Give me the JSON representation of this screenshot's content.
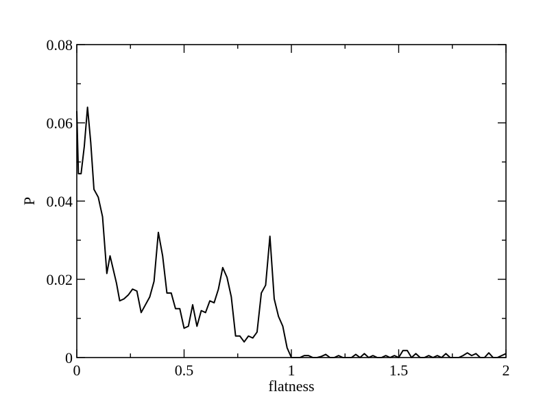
{
  "chart_data": {
    "type": "line",
    "xlabel": "flatness",
    "ylabel": "P",
    "xlim": [
      0,
      2
    ],
    "ylim": [
      0,
      0.08
    ],
    "grid": false,
    "x_ticks": [
      0,
      0.5,
      1,
      1.5,
      2
    ],
    "x_tick_labels": [
      "0",
      "0.5",
      "1",
      "1.5",
      "2"
    ],
    "x_minor_ticks": [
      0.25,
      0.75,
      1.25,
      1.75
    ],
    "y_ticks": [
      0,
      0.02,
      0.04,
      0.06,
      0.08
    ],
    "y_tick_labels": [
      "0",
      "0.02",
      "0.04",
      "0.06",
      "0.08"
    ],
    "y_minor_ticks": [
      0.01,
      0.03,
      0.05,
      0.07
    ],
    "series": [
      {
        "x": [
          0.0,
          0.0075,
          0.02,
          0.035,
          0.05,
          0.065,
          0.08,
          0.1,
          0.12,
          0.14,
          0.155,
          0.17,
          0.185,
          0.2,
          0.22,
          0.24,
          0.26,
          0.28,
          0.3,
          0.32,
          0.34,
          0.36,
          0.38,
          0.4,
          0.42,
          0.44,
          0.46,
          0.48,
          0.5,
          0.52,
          0.54,
          0.56,
          0.58,
          0.6,
          0.62,
          0.64,
          0.66,
          0.68,
          0.7,
          0.72,
          0.74,
          0.76,
          0.78,
          0.8,
          0.82,
          0.84,
          0.86,
          0.88,
          0.9,
          0.92,
          0.94,
          0.96,
          0.98,
          1.0,
          1.02,
          1.04,
          1.06,
          1.08,
          1.1,
          1.12,
          1.14,
          1.16,
          1.18,
          1.2,
          1.22,
          1.24,
          1.26,
          1.28,
          1.3,
          1.32,
          1.34,
          1.36,
          1.38,
          1.4,
          1.42,
          1.44,
          1.46,
          1.48,
          1.5,
          1.52,
          1.54,
          1.56,
          1.58,
          1.6,
          1.62,
          1.64,
          1.66,
          1.68,
          1.7,
          1.72,
          1.74,
          1.76,
          1.78,
          1.8,
          1.82,
          1.84,
          1.86,
          1.88,
          1.9,
          1.92,
          1.94,
          1.96,
          1.98,
          2.0
        ],
        "y": [
          0.063,
          0.047,
          0.047,
          0.054,
          0.064,
          0.055,
          0.043,
          0.041,
          0.036,
          0.0215,
          0.026,
          0.0225,
          0.019,
          0.0145,
          0.015,
          0.016,
          0.0175,
          0.017,
          0.0115,
          0.0135,
          0.0155,
          0.0195,
          0.032,
          0.026,
          0.0165,
          0.0165,
          0.0125,
          0.0125,
          0.0075,
          0.008,
          0.0135,
          0.008,
          0.012,
          0.0115,
          0.0145,
          0.014,
          0.0175,
          0.023,
          0.0205,
          0.0155,
          0.0055,
          0.0055,
          0.004,
          0.0055,
          0.005,
          0.0065,
          0.0165,
          0.0185,
          0.031,
          0.015,
          0.0105,
          0.008,
          0.0025,
          0.0,
          0.0,
          0.0,
          0.0005,
          0.0005,
          0.0,
          0.0,
          0.0003,
          0.0008,
          0.0,
          0.0,
          0.0005,
          0.0,
          0.0,
          0.0,
          0.0008,
          0.0,
          0.001,
          0.0,
          0.0005,
          0.0,
          0.0,
          0.0005,
          0.0,
          0.0005,
          0.0,
          0.0018,
          0.0018,
          0.0,
          0.001,
          0.0,
          0.0,
          0.0005,
          0.0,
          0.0005,
          0.0,
          0.001,
          0.0,
          0.0,
          0.0,
          0.0005,
          0.0012,
          0.0005,
          0.001,
          0.0,
          0.0,
          0.0012,
          0.0,
          0.0,
          0.0005,
          0.001
        ]
      }
    ]
  }
}
